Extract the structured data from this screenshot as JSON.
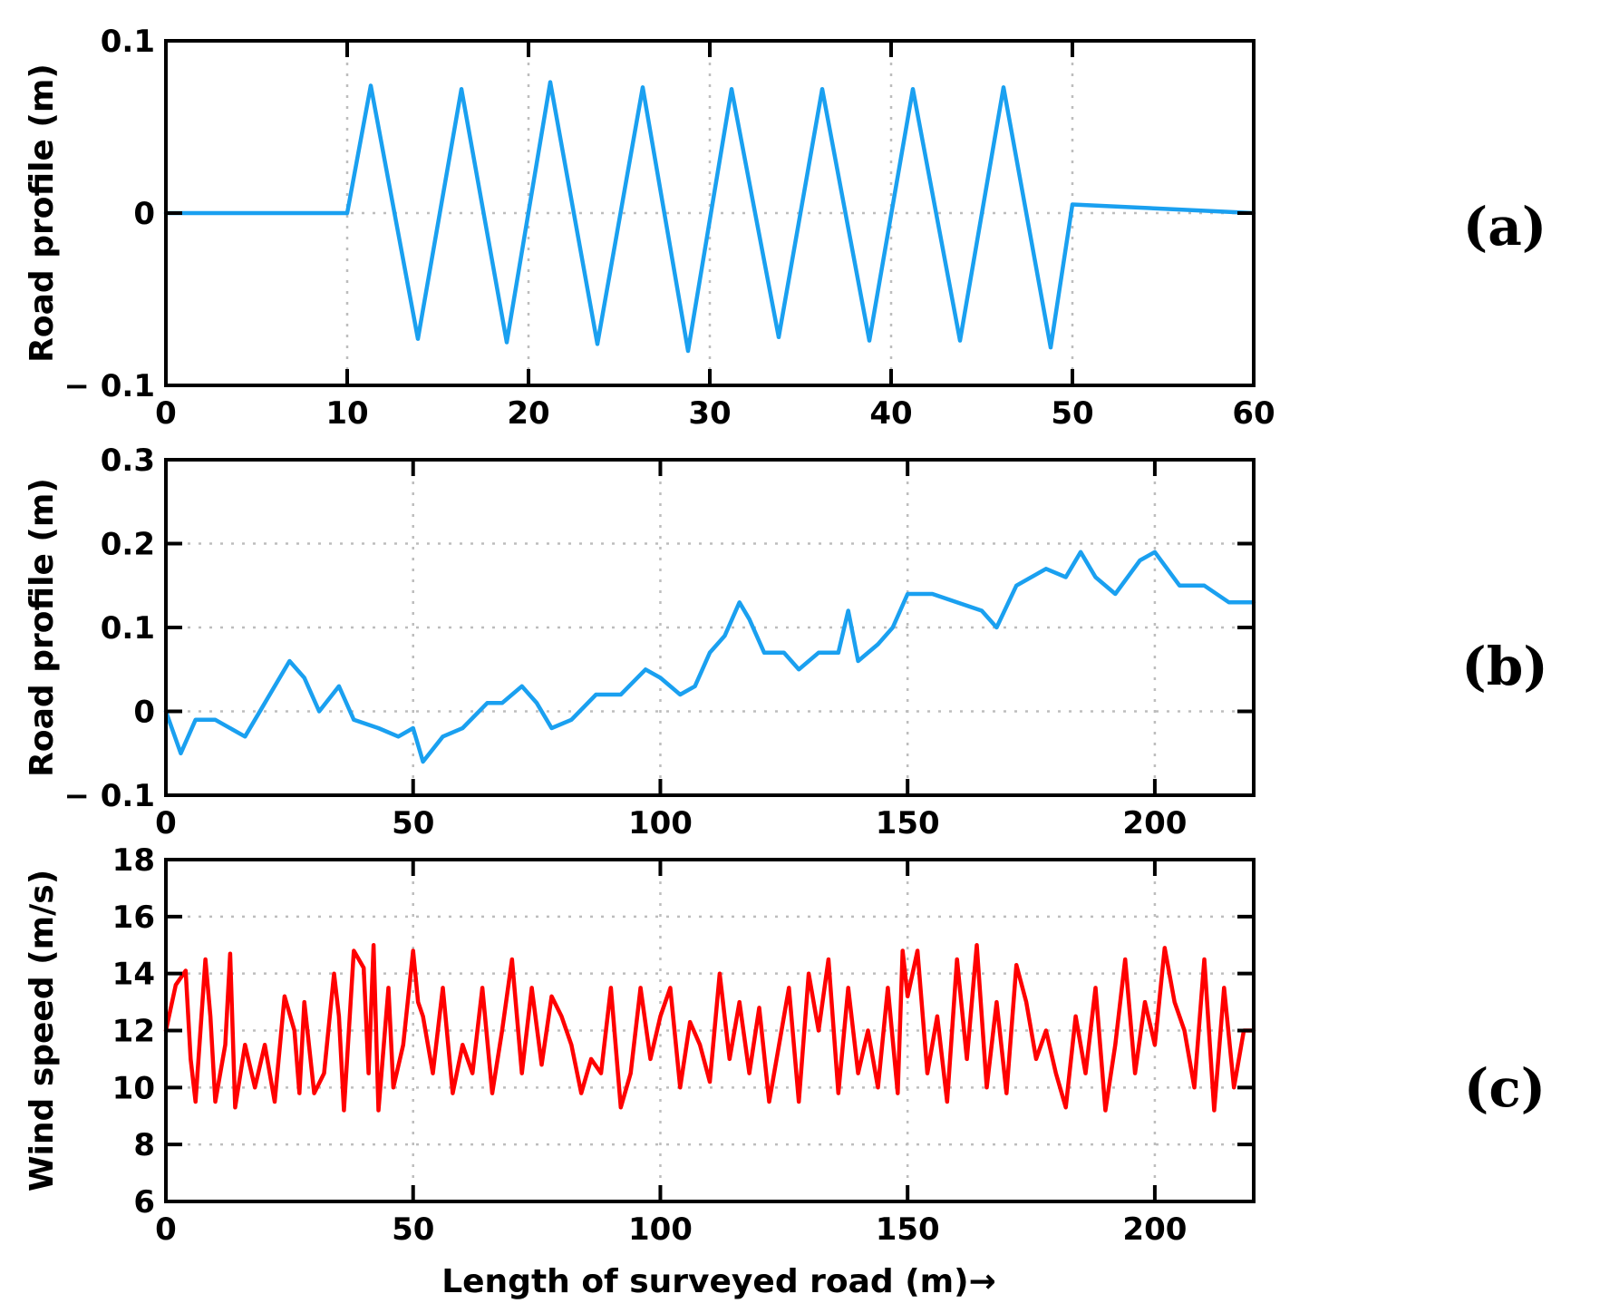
{
  "chart_data": [
    {
      "panel_label": "(a)",
      "type": "line",
      "ylabel": "Road profile (m)",
      "xlabel": "",
      "xlim": [
        0,
        60
      ],
      "ylim": [
        -0.1,
        0.1
      ],
      "x_ticks": [
        0,
        10,
        20,
        30,
        40,
        50,
        60
      ],
      "x_tick_labels": [
        "0",
        "10",
        "20",
        "30",
        "40",
        "50",
        "60"
      ],
      "y_ticks": [
        -0.1,
        0,
        0.1
      ],
      "y_tick_labels": [
        "− 0.1",
        "0",
        "0.1"
      ],
      "grid": true,
      "color": "#1aa0f0",
      "series": [
        {
          "x": [
            0,
            10,
            11.3,
            13.9,
            16.3,
            18.8,
            21.2,
            23.8,
            26.3,
            28.8,
            31.2,
            33.8,
            36.2,
            38.8,
            41.2,
            43.8,
            46.2,
            48.8,
            50,
            60
          ],
          "y": [
            0,
            0,
            0.074,
            -0.073,
            0.072,
            -0.075,
            0.076,
            -0.076,
            0.073,
            -0.08,
            0.072,
            -0.072,
            0.072,
            -0.074,
            0.072,
            -0.074,
            0.073,
            -0.078,
            0.005,
            0
          ]
        }
      ]
    },
    {
      "panel_label": "(b)",
      "type": "line",
      "ylabel": "Road profile (m)",
      "xlabel": "",
      "xlim": [
        0,
        220
      ],
      "ylim": [
        -0.1,
        0.3
      ],
      "x_ticks": [
        0,
        50,
        100,
        150,
        200
      ],
      "x_tick_labels": [
        "0",
        "50",
        "100",
        "150",
        "200"
      ],
      "y_ticks": [
        -0.1,
        0,
        0.1,
        0.2,
        0.3
      ],
      "y_tick_labels": [
        "− 0.1",
        "0",
        "0.1",
        "0.2",
        "0.3"
      ],
      "grid": true,
      "color": "#1aa0f0",
      "series": [
        {
          "x": [
            0,
            3,
            6,
            10,
            16,
            20,
            25,
            28,
            31,
            35,
            38,
            43,
            47,
            50,
            52,
            56,
            60,
            65,
            68,
            72,
            75,
            78,
            82,
            87,
            92,
            97,
            100,
            104,
            107,
            110,
            113,
            116,
            118,
            121,
            125,
            128,
            132,
            136,
            138,
            140,
            144,
            147,
            150,
            155,
            160,
            165,
            168,
            172,
            178,
            182,
            185,
            188,
            192,
            197,
            200,
            205,
            210,
            215,
            220
          ],
          "y": [
            0,
            -0.05,
            -0.01,
            -0.01,
            -0.03,
            0.01,
            0.06,
            0.04,
            0,
            0.03,
            -0.01,
            -0.02,
            -0.03,
            -0.02,
            -0.06,
            -0.03,
            -0.02,
            0.01,
            0.01,
            0.03,
            0.01,
            -0.02,
            -0.01,
            0.02,
            0.02,
            0.05,
            0.04,
            0.02,
            0.03,
            0.07,
            0.09,
            0.13,
            0.11,
            0.07,
            0.07,
            0.05,
            0.07,
            0.07,
            0.12,
            0.06,
            0.08,
            0.1,
            0.14,
            0.14,
            0.13,
            0.12,
            0.1,
            0.15,
            0.17,
            0.16,
            0.19,
            0.16,
            0.14,
            0.18,
            0.19,
            0.15,
            0.15,
            0.13,
            0.13
          ]
        }
      ]
    },
    {
      "panel_label": "(c)",
      "type": "line",
      "ylabel": "Wind speed (m/s)",
      "xlabel": "Length of surveyed road (m)→",
      "xlim": [
        0,
        220
      ],
      "ylim": [
        6,
        18
      ],
      "x_ticks": [
        0,
        50,
        100,
        150,
        200
      ],
      "x_tick_labels": [
        "0",
        "50",
        "100",
        "150",
        "200"
      ],
      "y_ticks": [
        6,
        8,
        10,
        12,
        14,
        16,
        18
      ],
      "y_tick_labels": [
        "6",
        "8",
        "10",
        "12",
        "14",
        "16",
        "18"
      ],
      "grid": true,
      "color": "#ff0000",
      "series": [
        {
          "x": [
            0,
            2,
            4,
            5,
            6,
            8,
            9,
            10,
            12,
            13,
            14,
            16,
            18,
            20,
            22,
            24,
            26,
            27,
            28,
            30,
            32,
            34,
            35,
            36,
            38,
            40,
            41,
            42,
            43,
            45,
            46,
            48,
            50,
            51,
            52,
            54,
            56,
            58,
            60,
            62,
            64,
            66,
            68,
            70,
            72,
            74,
            76,
            78,
            80,
            82,
            84,
            86,
            88,
            90,
            92,
            94,
            96,
            98,
            100,
            102,
            104,
            106,
            108,
            110,
            112,
            114,
            116,
            118,
            120,
            122,
            124,
            126,
            128,
            130,
            132,
            134,
            136,
            138,
            140,
            142,
            144,
            146,
            148,
            149,
            150,
            152,
            154,
            156,
            158,
            160,
            162,
            164,
            166,
            168,
            170,
            172,
            174,
            176,
            178,
            180,
            182,
            184,
            186,
            188,
            190,
            192,
            194,
            196,
            198,
            200,
            202,
            204,
            206,
            208,
            210,
            212,
            214,
            216,
            218,
            220
          ],
          "y": [
            12,
            13.6,
            14.1,
            11,
            9.5,
            14.5,
            12.5,
            9.5,
            11.5,
            14.7,
            9.3,
            11.5,
            10,
            11.5,
            9.5,
            13.2,
            12,
            9.8,
            13,
            9.8,
            10.5,
            14,
            12.5,
            9.2,
            14.8,
            14.2,
            10.5,
            15,
            9.2,
            13.5,
            10,
            11.5,
            14.8,
            13,
            12.5,
            10.5,
            13.5,
            9.8,
            11.5,
            10.5,
            13.5,
            9.8,
            12,
            14.5,
            10.5,
            13.5,
            10.8,
            13.2,
            12.5,
            11.5,
            9.8,
            11,
            10.5,
            13.5,
            9.3,
            10.5,
            13.5,
            11,
            12.5,
            13.5,
            10,
            12.3,
            11.5,
            10.2,
            14,
            11,
            13,
            10.5,
            12.8,
            9.5,
            11.5,
            13.5,
            9.5,
            14,
            12,
            14.5,
            9.8,
            13.5,
            10.5,
            12,
            10,
            13.5,
            9.8,
            14.8,
            13.2,
            14.8,
            10.5,
            12.5,
            9.5,
            14.5,
            11,
            15,
            10,
            13,
            9.8,
            14.3,
            13,
            11,
            12,
            10.5,
            9.3,
            12.5,
            10.5,
            13.5,
            9.2,
            11.5,
            14.5,
            10.5,
            13,
            11.5,
            14.9,
            13,
            12,
            10,
            14.5,
            9.2,
            13.5,
            10,
            12,
            12
          ]
        }
      ]
    }
  ]
}
